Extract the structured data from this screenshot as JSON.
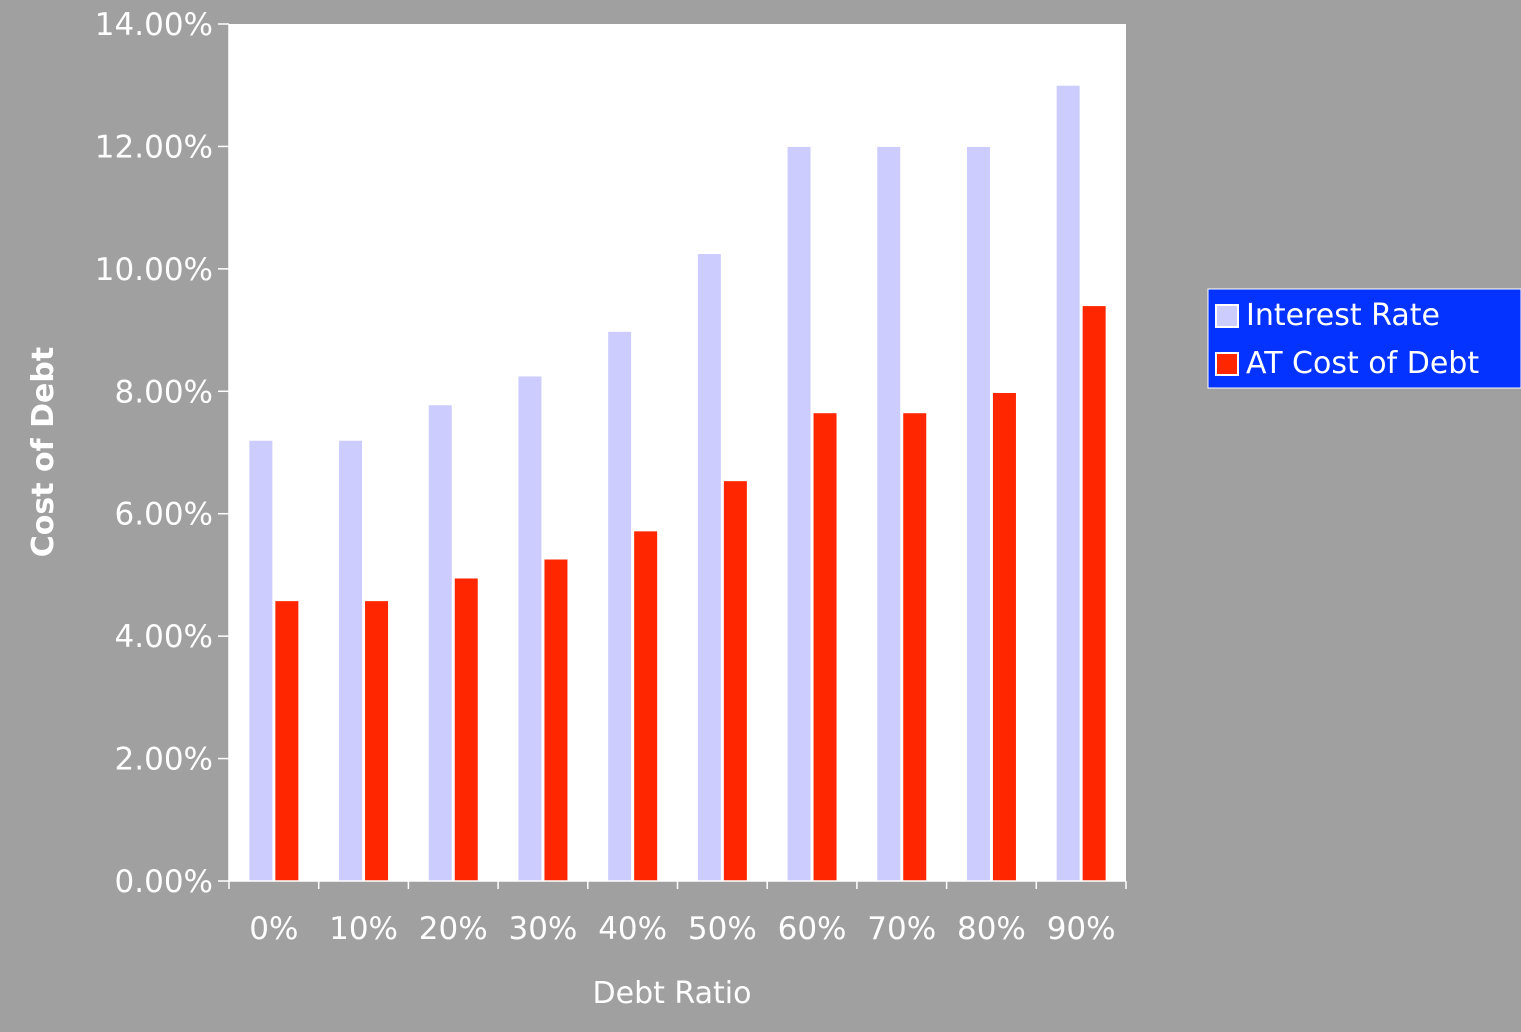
{
  "chart_data": {
    "type": "bar",
    "title": "",
    "xlabel": "Debt Ratio",
    "ylabel": "Cost of Debt",
    "categories": [
      "0%",
      "10%",
      "20%",
      "30%",
      "40%",
      "50%",
      "60%",
      "70%",
      "80%",
      "90%"
    ],
    "series": [
      {
        "name": "Interest Rate",
        "color": "#ccccff",
        "values": [
          7.2,
          7.2,
          7.78,
          8.25,
          8.98,
          10.25,
          12.0,
          12.0,
          12.0,
          13.0
        ]
      },
      {
        "name": "AT Cost of Debt",
        "color": "#ff2600",
        "values": [
          4.58,
          4.58,
          4.95,
          5.26,
          5.72,
          6.54,
          7.65,
          7.65,
          7.98,
          9.4
        ]
      }
    ],
    "ylim": [
      0,
      14
    ],
    "yticks": [
      "0.00%",
      "2.00%",
      "4.00%",
      "6.00%",
      "8.00%",
      "10.00%",
      "12.00%",
      "14.00%"
    ],
    "ytick_values": [
      0,
      2,
      4,
      6,
      8,
      10,
      12,
      14
    ],
    "grid": false,
    "legend_position": "right",
    "colors": {
      "background": "#a0a0a0",
      "plot_area": "#ffffff",
      "legend_background": "#0433ff"
    }
  }
}
